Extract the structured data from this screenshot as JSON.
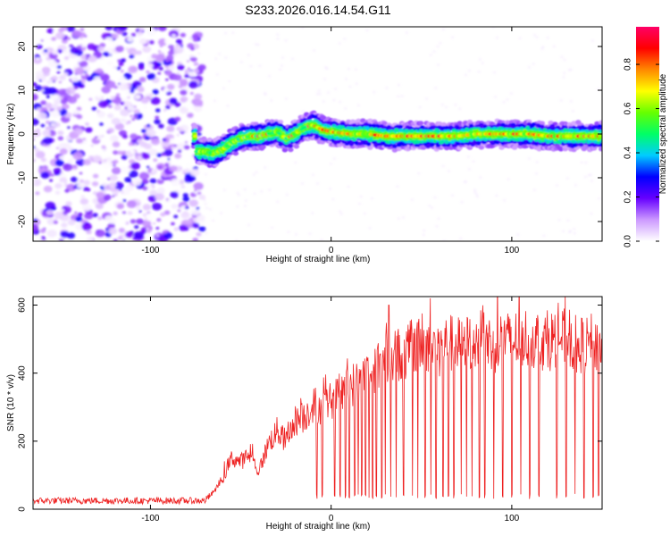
{
  "figure_title": "S233.2026.016.14.54.G11",
  "chart_data": [
    {
      "type": "heatmap",
      "title": "S233.2026.016.14.54.G11",
      "xlabel": "Height of straight line (km)",
      "ylabel": "Frequency (Hz)",
      "xlim": [
        -165,
        150
      ],
      "ylim": [
        -24.5,
        24.5
      ],
      "xticks": [
        -100,
        0,
        100
      ],
      "yticks": [
        20,
        10,
        0,
        -10,
        -20
      ],
      "xtick_labels": [
        "-100",
        "0",
        "100"
      ],
      "ytick_labels": [
        "20",
        "10",
        "0",
        "-10",
        "-20"
      ],
      "grid": false,
      "colorbar": {
        "label": "Normalized spectral amplitude",
        "range": [
          0,
          0.97
        ],
        "ticks": [
          0.0,
          0.2,
          0.4,
          0.6,
          0.8
        ],
        "tick_labels": [
          "0.0",
          "0.2",
          "0.4",
          "0.6",
          "0.8"
        ],
        "colors": [
          "#ffffff",
          "#cc99ff",
          "#6600ff",
          "#0000ff",
          "#00ccff",
          "#00ff66",
          "#66ff00",
          "#ffff00",
          "#ff8800",
          "#ff0000",
          "#ff0066"
        ]
      },
      "noise_region_x": [
        -165,
        -75
      ],
      "ridge": {
        "x": [
          -75,
          -70,
          -65,
          -60,
          -55,
          -50,
          -45,
          -40,
          -35,
          -30,
          -25,
          -20,
          -15,
          -10,
          -5,
          0,
          10,
          20,
          30,
          40,
          50,
          60,
          70,
          80,
          90,
          100,
          110,
          120,
          130,
          140,
          148
        ],
        "frequency_hz": [
          -4,
          -4,
          -4.5,
          -3.5,
          -2,
          -1,
          -0.5,
          -0.5,
          0,
          0.5,
          -1,
          0,
          1.5,
          2,
          1,
          0.5,
          0,
          0,
          -0.5,
          -0.5,
          -0.5,
          -0.5,
          -0.5,
          0,
          0,
          0,
          0,
          -0.5,
          -0.5,
          -0.5,
          -0.5
        ]
      }
    },
    {
      "type": "line",
      "xlabel": "Height of straight line (km)",
      "ylabel": "SNR (10 * v/v)",
      "xlim": [
        -165,
        150
      ],
      "ylim": [
        0,
        625
      ],
      "xticks": [
        -100,
        0,
        100
      ],
      "yticks": [
        0,
        200,
        400,
        600
      ],
      "xtick_labels": [
        "-100",
        "0",
        "100"
      ],
      "ytick_labels": [
        "0",
        "200",
        "400",
        "600"
      ],
      "grid": false,
      "series": [
        {
          "name": "SNR",
          "color": "#ee2222",
          "x": [
            -165,
            -150,
            -140,
            -130,
            -120,
            -110,
            -100,
            -90,
            -80,
            -70,
            -65,
            -60,
            -55,
            -50,
            -45,
            -40,
            -35,
            -30,
            -25,
            -20,
            -15,
            -10,
            -5,
            0,
            5,
            10,
            15,
            20,
            25,
            30,
            35,
            40,
            45,
            50,
            55,
            60,
            65,
            70,
            75,
            80,
            85,
            90,
            95,
            100,
            105,
            110,
            115,
            120,
            125,
            130,
            135,
            140,
            145,
            150
          ],
          "y": [
            25,
            25,
            25,
            25,
            25,
            25,
            25,
            25,
            25,
            25,
            50,
            90,
            150,
            140,
            160,
            110,
            190,
            230,
            200,
            260,
            270,
            310,
            300,
            320,
            340,
            360,
            380,
            400,
            420,
            440,
            460,
            450,
            470,
            480,
            490,
            470,
            490,
            480,
            500,
            490,
            500,
            480,
            500,
            490,
            510,
            500,
            500,
            490,
            510,
            500,
            490,
            480,
            490,
            480
          ]
        }
      ],
      "dropouts_x": [
        -8,
        -5,
        2,
        5,
        8,
        10,
        13,
        15,
        17,
        19,
        21,
        23,
        25,
        28,
        30,
        33,
        36,
        40,
        45,
        48,
        52,
        55,
        58,
        62,
        65,
        68,
        72,
        75,
        78,
        82,
        85,
        90,
        95,
        100,
        105,
        110,
        115,
        125,
        130,
        135,
        140,
        145,
        148
      ],
      "dropout_level": 30,
      "peak_values": [
        {
          "x": 55,
          "y": 620
        },
        {
          "x": 32,
          "y": 600
        }
      ]
    }
  ]
}
